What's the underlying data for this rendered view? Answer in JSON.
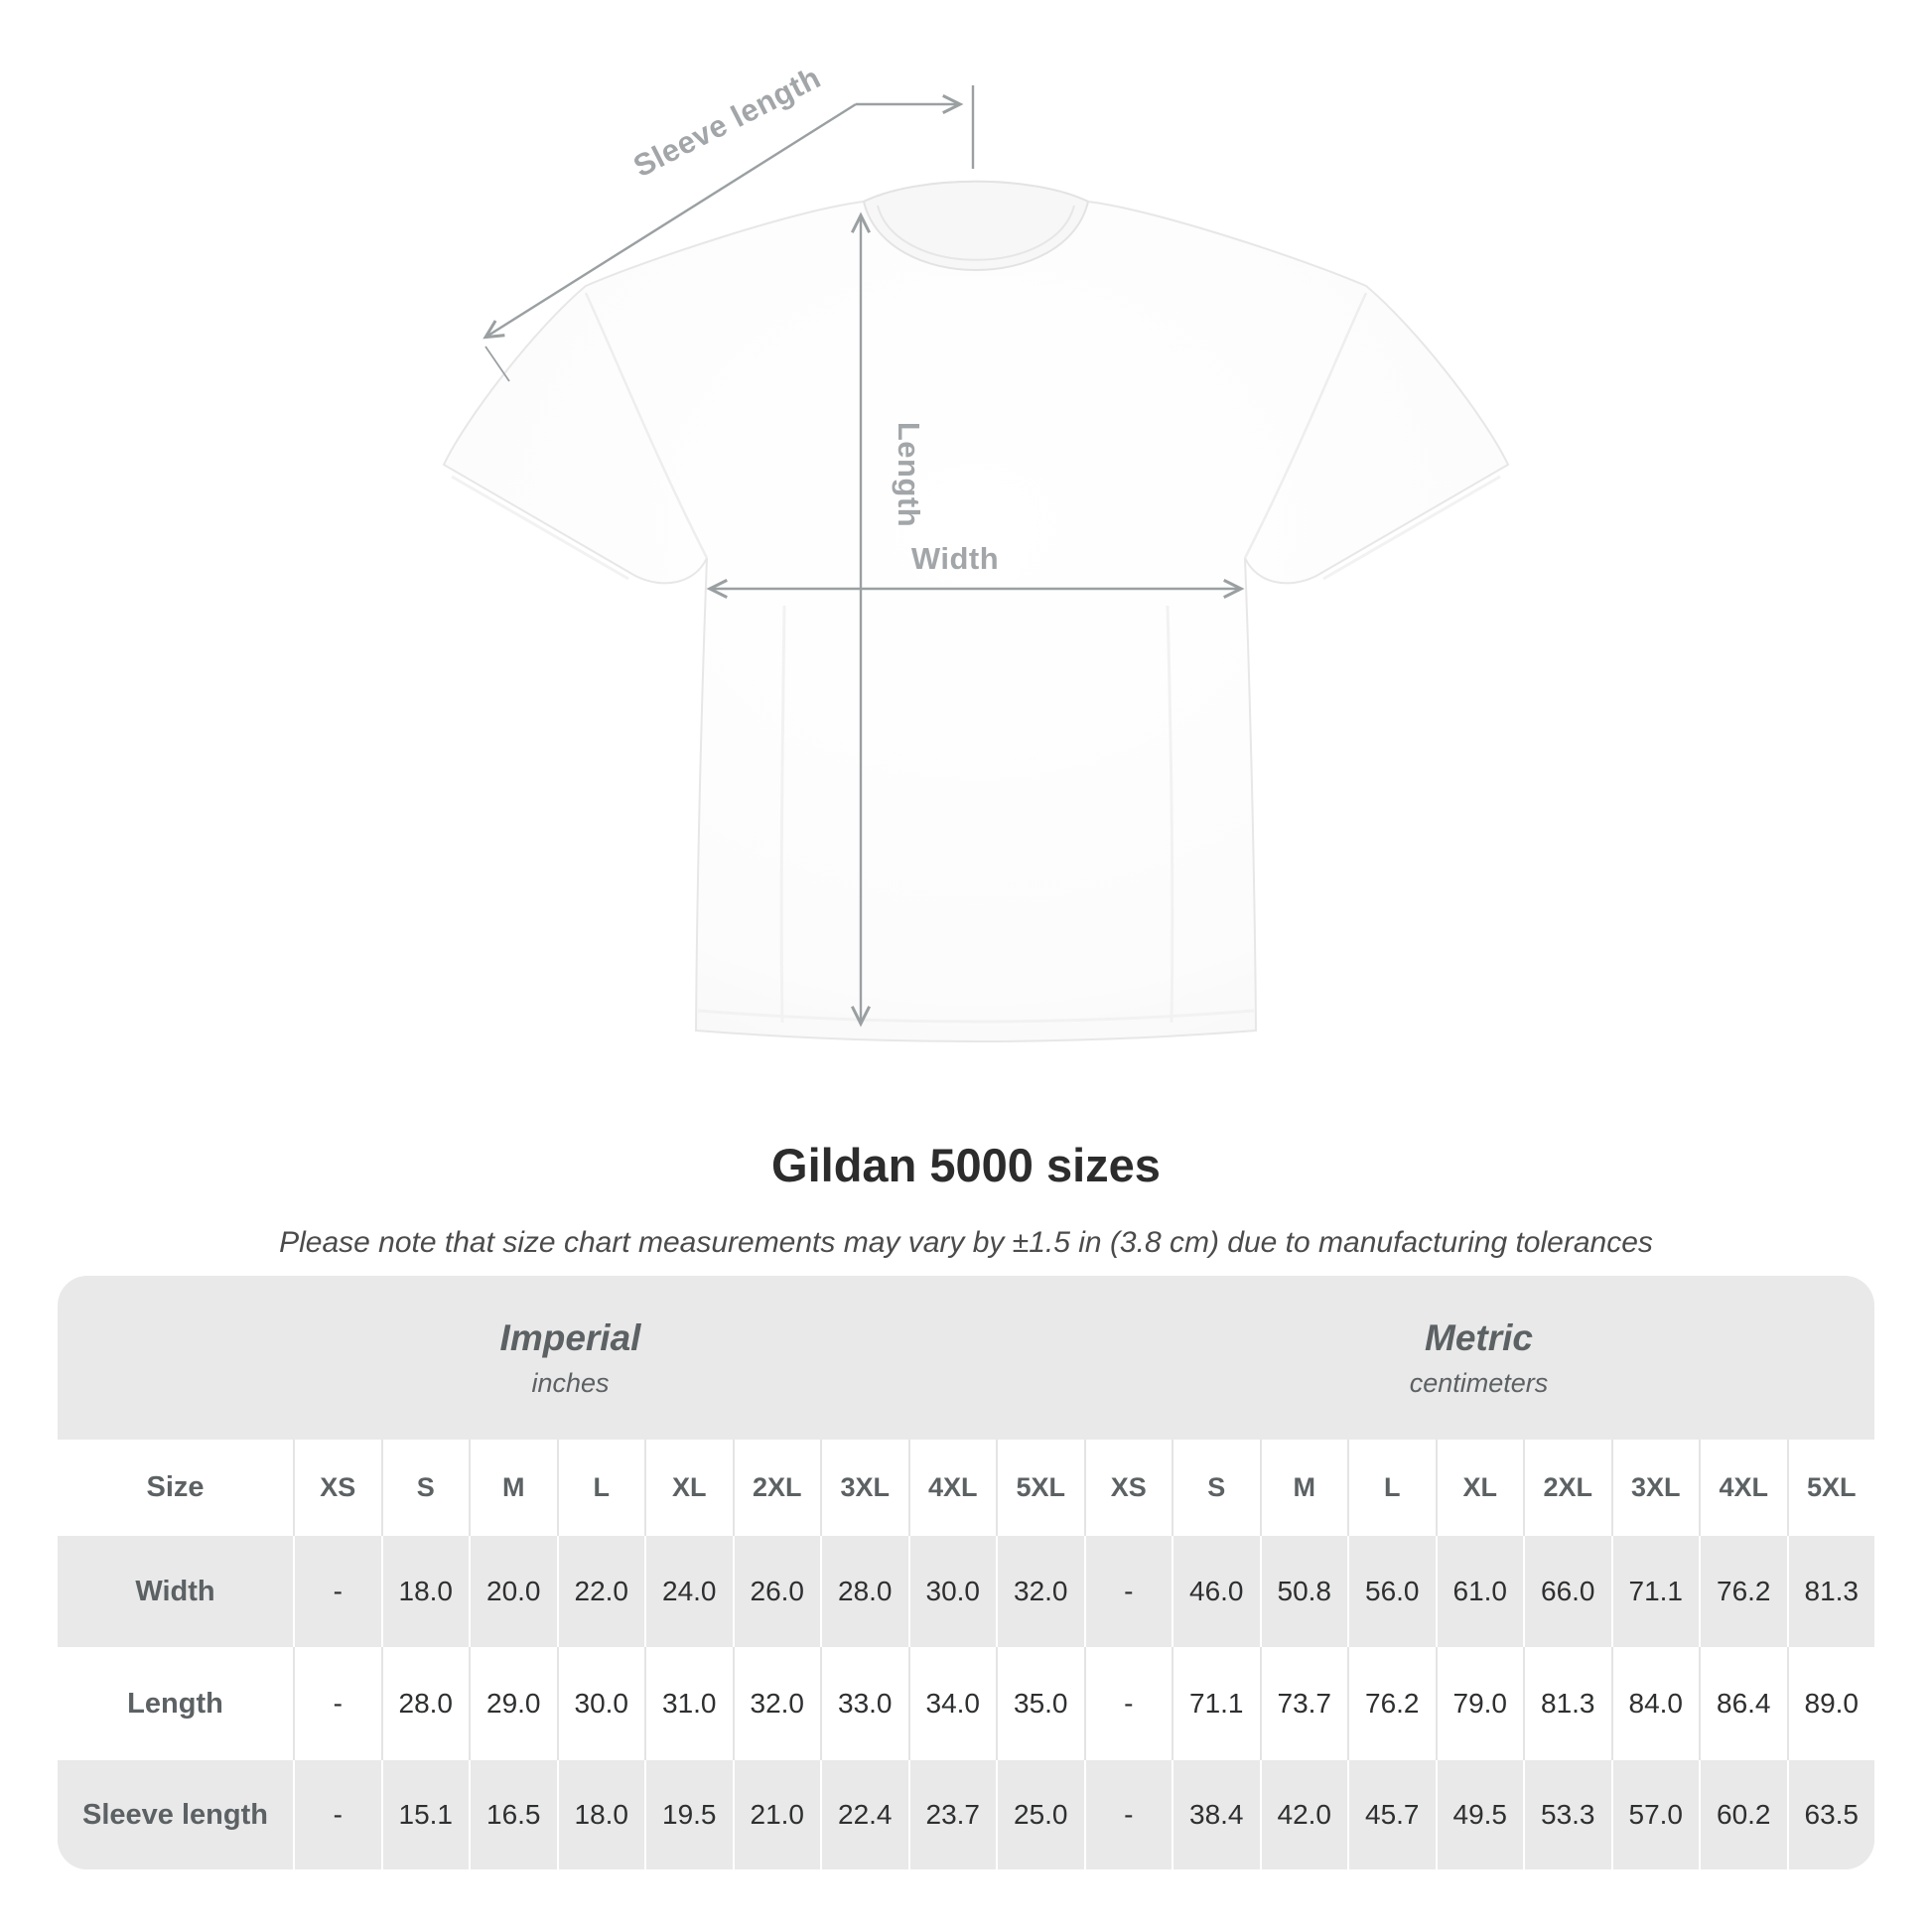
{
  "diagram": {
    "sleeve_label": "Sleeve length",
    "length_label": "Length",
    "width_label": "Width"
  },
  "title": "Gildan 5000 sizes",
  "subtitle": "Please note that size chart measurements may vary by ±1.5 in (3.8 cm) due to manufacturing tolerances",
  "chart_data": {
    "type": "table",
    "title": "Gildan 5000 sizes",
    "unit_groups": [
      {
        "label": "Imperial",
        "unit": "inches"
      },
      {
        "label": "Metric",
        "unit": "centimeters"
      }
    ],
    "size_header": "Size",
    "sizes": [
      "XS",
      "S",
      "M",
      "L",
      "XL",
      "2XL",
      "3XL",
      "4XL",
      "5XL"
    ],
    "rows": [
      {
        "label": "Width",
        "imperial": [
          "-",
          "18.0",
          "20.0",
          "22.0",
          "24.0",
          "26.0",
          "28.0",
          "30.0",
          "32.0"
        ],
        "metric": [
          "-",
          "46.0",
          "50.8",
          "56.0",
          "61.0",
          "66.0",
          "71.1",
          "76.2",
          "81.3"
        ]
      },
      {
        "label": "Length",
        "imperial": [
          "-",
          "28.0",
          "29.0",
          "30.0",
          "31.0",
          "32.0",
          "33.0",
          "34.0",
          "35.0"
        ],
        "metric": [
          "-",
          "71.1",
          "73.7",
          "76.2",
          "79.0",
          "81.3",
          "84.0",
          "86.4",
          "89.0"
        ]
      },
      {
        "label": "Sleeve length",
        "imperial": [
          "-",
          "15.1",
          "16.5",
          "18.0",
          "19.5",
          "21.0",
          "22.4",
          "23.7",
          "25.0"
        ],
        "metric": [
          "-",
          "38.4",
          "42.0",
          "45.7",
          "49.5",
          "53.3",
          "57.0",
          "60.2",
          "63.5"
        ]
      }
    ]
  },
  "colors": {
    "annotation_gray": "#9aa0a2",
    "table_background": "#e9e9e9",
    "header_text": "#5c6164",
    "value_text": "#2e2f30"
  }
}
